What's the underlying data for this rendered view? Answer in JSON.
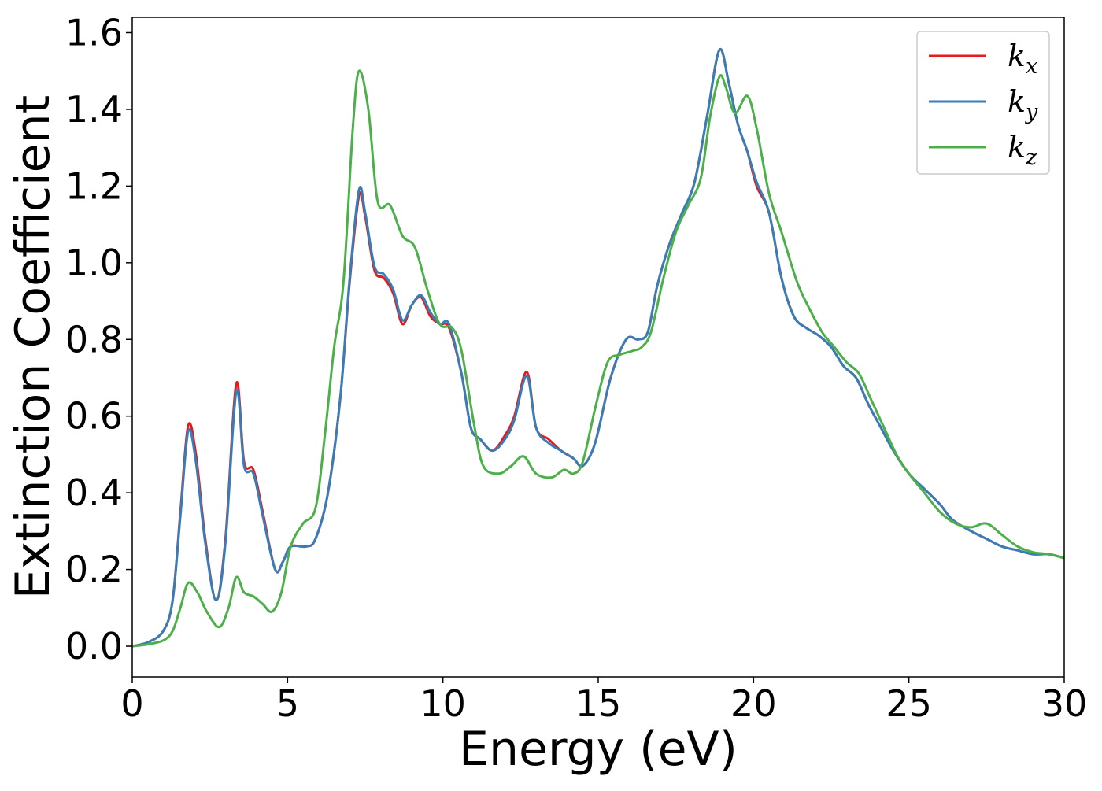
{
  "chart_data": {
    "type": "line",
    "title": "",
    "xlabel": "Energy (eV)",
    "ylabel": "Extinction Coefficient",
    "xlim": [
      0,
      30
    ],
    "ylim": [
      -0.08,
      1.64
    ],
    "xticks": [
      0,
      5,
      10,
      15,
      20,
      25,
      30
    ],
    "xtick_labels": [
      "0",
      "5",
      "10",
      "15",
      "20",
      "25",
      "30"
    ],
    "yticks": [
      0.0,
      0.2,
      0.4,
      0.6,
      0.8,
      1.0,
      1.2,
      1.4,
      1.6
    ],
    "ytick_labels": [
      "0.0",
      "0.2",
      "0.4",
      "0.6",
      "0.8",
      "1.0",
      "1.2",
      "1.4",
      "1.6"
    ],
    "grid": false,
    "legend_position": "top-right",
    "series": [
      {
        "name": "k",
        "subscript": "x",
        "color": "#e41a1c",
        "points": [
          [
            0,
            0.0
          ],
          [
            0.5,
            0.01
          ],
          [
            1.0,
            0.04
          ],
          [
            1.3,
            0.12
          ],
          [
            1.55,
            0.35
          ],
          [
            1.8,
            0.575
          ],
          [
            2.05,
            0.5
          ],
          [
            2.35,
            0.28
          ],
          [
            2.7,
            0.12
          ],
          [
            3.0,
            0.28
          ],
          [
            3.35,
            0.685
          ],
          [
            3.6,
            0.48
          ],
          [
            3.9,
            0.46
          ],
          [
            4.2,
            0.35
          ],
          [
            4.6,
            0.2
          ],
          [
            4.85,
            0.22
          ],
          [
            5.1,
            0.26
          ],
          [
            5.6,
            0.26
          ],
          [
            5.9,
            0.28
          ],
          [
            6.3,
            0.4
          ],
          [
            6.7,
            0.65
          ],
          [
            7.0,
            0.95
          ],
          [
            7.3,
            1.175
          ],
          [
            7.5,
            1.12
          ],
          [
            7.8,
            0.98
          ],
          [
            8.1,
            0.96
          ],
          [
            8.4,
            0.92
          ],
          [
            8.7,
            0.84
          ],
          [
            9.0,
            0.89
          ],
          [
            9.3,
            0.91
          ],
          [
            9.6,
            0.86
          ],
          [
            9.9,
            0.84
          ],
          [
            10.2,
            0.83
          ],
          [
            10.6,
            0.71
          ],
          [
            10.9,
            0.57
          ],
          [
            11.2,
            0.54
          ],
          [
            11.6,
            0.51
          ],
          [
            12.0,
            0.55
          ],
          [
            12.3,
            0.6
          ],
          [
            12.7,
            0.715
          ],
          [
            13.0,
            0.57
          ],
          [
            13.4,
            0.54
          ],
          [
            13.8,
            0.51
          ],
          [
            14.2,
            0.49
          ],
          [
            14.5,
            0.47
          ],
          [
            14.9,
            0.53
          ],
          [
            15.4,
            0.7
          ],
          [
            15.9,
            0.8
          ],
          [
            16.3,
            0.8
          ],
          [
            16.6,
            0.82
          ],
          [
            16.9,
            0.94
          ],
          [
            17.3,
            1.05
          ],
          [
            17.7,
            1.13
          ],
          [
            18.1,
            1.21
          ],
          [
            18.5,
            1.38
          ],
          [
            18.9,
            1.555
          ],
          [
            19.2,
            1.47
          ],
          [
            19.5,
            1.36
          ],
          [
            19.8,
            1.29
          ],
          [
            20.1,
            1.2
          ],
          [
            20.5,
            1.13
          ],
          [
            20.9,
            0.96
          ],
          [
            21.3,
            0.86
          ],
          [
            21.7,
            0.83
          ],
          [
            22.1,
            0.81
          ],
          [
            22.5,
            0.78
          ],
          [
            22.9,
            0.73
          ],
          [
            23.3,
            0.7
          ],
          [
            23.7,
            0.63
          ],
          [
            24.1,
            0.57
          ],
          [
            24.5,
            0.51
          ],
          [
            25.0,
            0.45
          ],
          [
            25.5,
            0.41
          ],
          [
            26.0,
            0.37
          ],
          [
            26.4,
            0.33
          ],
          [
            27.0,
            0.3
          ],
          [
            27.5,
            0.28
          ],
          [
            28.0,
            0.26
          ],
          [
            28.5,
            0.25
          ],
          [
            29.0,
            0.24
          ],
          [
            29.5,
            0.24
          ],
          [
            30.0,
            0.23
          ]
        ]
      },
      {
        "name": "k",
        "subscript": "y",
        "color": "#377eb8",
        "points": [
          [
            0,
            0.0
          ],
          [
            0.5,
            0.01
          ],
          [
            1.0,
            0.04
          ],
          [
            1.3,
            0.12
          ],
          [
            1.55,
            0.34
          ],
          [
            1.8,
            0.56
          ],
          [
            2.05,
            0.48
          ],
          [
            2.35,
            0.27
          ],
          [
            2.7,
            0.12
          ],
          [
            3.0,
            0.27
          ],
          [
            3.35,
            0.665
          ],
          [
            3.6,
            0.47
          ],
          [
            3.9,
            0.45
          ],
          [
            4.2,
            0.34
          ],
          [
            4.6,
            0.2
          ],
          [
            4.85,
            0.22
          ],
          [
            5.1,
            0.26
          ],
          [
            5.6,
            0.26
          ],
          [
            5.9,
            0.28
          ],
          [
            6.3,
            0.4
          ],
          [
            6.7,
            0.65
          ],
          [
            7.0,
            0.96
          ],
          [
            7.3,
            1.19
          ],
          [
            7.5,
            1.13
          ],
          [
            7.8,
            0.99
          ],
          [
            8.1,
            0.97
          ],
          [
            8.4,
            0.93
          ],
          [
            8.7,
            0.85
          ],
          [
            9.0,
            0.89
          ],
          [
            9.3,
            0.915
          ],
          [
            9.6,
            0.87
          ],
          [
            9.9,
            0.84
          ],
          [
            10.2,
            0.84
          ],
          [
            10.6,
            0.71
          ],
          [
            10.9,
            0.57
          ],
          [
            11.2,
            0.54
          ],
          [
            11.6,
            0.51
          ],
          [
            12.0,
            0.54
          ],
          [
            12.3,
            0.59
          ],
          [
            12.7,
            0.705
          ],
          [
            13.0,
            0.57
          ],
          [
            13.4,
            0.53
          ],
          [
            13.8,
            0.51
          ],
          [
            14.2,
            0.49
          ],
          [
            14.5,
            0.47
          ],
          [
            14.9,
            0.53
          ],
          [
            15.4,
            0.7
          ],
          [
            15.9,
            0.8
          ],
          [
            16.3,
            0.8
          ],
          [
            16.6,
            0.82
          ],
          [
            16.9,
            0.94
          ],
          [
            17.3,
            1.05
          ],
          [
            17.7,
            1.13
          ],
          [
            18.1,
            1.21
          ],
          [
            18.5,
            1.38
          ],
          [
            18.9,
            1.555
          ],
          [
            19.2,
            1.47
          ],
          [
            19.5,
            1.36
          ],
          [
            19.8,
            1.29
          ],
          [
            20.1,
            1.21
          ],
          [
            20.5,
            1.13
          ],
          [
            20.9,
            0.96
          ],
          [
            21.3,
            0.86
          ],
          [
            21.7,
            0.83
          ],
          [
            22.1,
            0.81
          ],
          [
            22.5,
            0.78
          ],
          [
            22.9,
            0.73
          ],
          [
            23.3,
            0.7
          ],
          [
            23.7,
            0.63
          ],
          [
            24.1,
            0.57
          ],
          [
            24.5,
            0.51
          ],
          [
            25.0,
            0.45
          ],
          [
            25.5,
            0.41
          ],
          [
            26.0,
            0.37
          ],
          [
            26.4,
            0.33
          ],
          [
            27.0,
            0.3
          ],
          [
            27.5,
            0.28
          ],
          [
            28.0,
            0.26
          ],
          [
            28.5,
            0.25
          ],
          [
            29.0,
            0.24
          ],
          [
            29.5,
            0.24
          ],
          [
            30.0,
            0.23
          ]
        ]
      },
      {
        "name": "k",
        "subscript": "z",
        "color": "#4daf4a",
        "points": [
          [
            0,
            0.0
          ],
          [
            0.5,
            0.005
          ],
          [
            1.0,
            0.015
          ],
          [
            1.3,
            0.04
          ],
          [
            1.55,
            0.1
          ],
          [
            1.8,
            0.165
          ],
          [
            2.1,
            0.14
          ],
          [
            2.4,
            0.09
          ],
          [
            2.8,
            0.05
          ],
          [
            3.1,
            0.1
          ],
          [
            3.35,
            0.18
          ],
          [
            3.6,
            0.14
          ],
          [
            3.9,
            0.13
          ],
          [
            4.2,
            0.11
          ],
          [
            4.5,
            0.09
          ],
          [
            4.8,
            0.14
          ],
          [
            5.1,
            0.26
          ],
          [
            5.5,
            0.32
          ],
          [
            5.9,
            0.36
          ],
          [
            6.2,
            0.55
          ],
          [
            6.5,
            0.78
          ],
          [
            6.8,
            0.95
          ],
          [
            7.1,
            1.35
          ],
          [
            7.3,
            1.5
          ],
          [
            7.6,
            1.4
          ],
          [
            7.9,
            1.16
          ],
          [
            8.3,
            1.15
          ],
          [
            8.7,
            1.07
          ],
          [
            9.1,
            1.04
          ],
          [
            9.5,
            0.93
          ],
          [
            9.9,
            0.84
          ],
          [
            10.3,
            0.83
          ],
          [
            10.6,
            0.77
          ],
          [
            11.0,
            0.58
          ],
          [
            11.3,
            0.47
          ],
          [
            11.8,
            0.45
          ],
          [
            12.2,
            0.47
          ],
          [
            12.6,
            0.495
          ],
          [
            13.0,
            0.45
          ],
          [
            13.5,
            0.44
          ],
          [
            13.9,
            0.46
          ],
          [
            14.2,
            0.45
          ],
          [
            14.5,
            0.48
          ],
          [
            14.9,
            0.62
          ],
          [
            15.3,
            0.74
          ],
          [
            15.7,
            0.76
          ],
          [
            16.1,
            0.77
          ],
          [
            16.4,
            0.78
          ],
          [
            16.7,
            0.82
          ],
          [
            17.1,
            0.96
          ],
          [
            17.5,
            1.08
          ],
          [
            17.9,
            1.15
          ],
          [
            18.3,
            1.22
          ],
          [
            18.6,
            1.38
          ],
          [
            18.9,
            1.485
          ],
          [
            19.1,
            1.46
          ],
          [
            19.4,
            1.39
          ],
          [
            19.8,
            1.435
          ],
          [
            20.1,
            1.35
          ],
          [
            20.5,
            1.18
          ],
          [
            20.9,
            1.08
          ],
          [
            21.4,
            0.95
          ],
          [
            21.8,
            0.88
          ],
          [
            22.2,
            0.82
          ],
          [
            22.6,
            0.78
          ],
          [
            23.0,
            0.74
          ],
          [
            23.4,
            0.71
          ],
          [
            23.8,
            0.64
          ],
          [
            24.2,
            0.57
          ],
          [
            24.6,
            0.5
          ],
          [
            25.0,
            0.45
          ],
          [
            25.5,
            0.4
          ],
          [
            26.0,
            0.35
          ],
          [
            26.5,
            0.32
          ],
          [
            27.0,
            0.31
          ],
          [
            27.5,
            0.32
          ],
          [
            28.0,
            0.29
          ],
          [
            28.5,
            0.26
          ],
          [
            29.0,
            0.245
          ],
          [
            29.5,
            0.24
          ],
          [
            30.0,
            0.23
          ]
        ]
      }
    ]
  }
}
